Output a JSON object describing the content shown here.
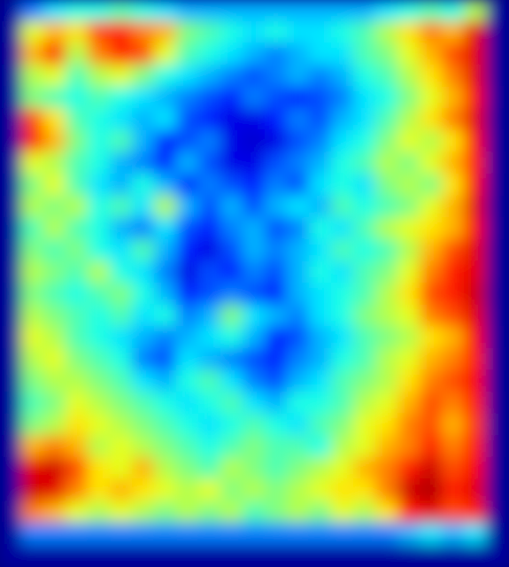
{
  "chart_data": {
    "type": "heatmap",
    "tick_labels": false,
    "color_range": [
      0,
      100
    ],
    "cells": [
      [
        3,
        25,
        35,
        40,
        40,
        45,
        40,
        35,
        30,
        30,
        30,
        30,
        30,
        30,
        30,
        30,
        30,
        35,
        40,
        45,
        40,
        55,
        3
      ],
      [
        3,
        60,
        70,
        65,
        80,
        85,
        75,
        70,
        50,
        45,
        40,
        35,
        40,
        35,
        35,
        40,
        45,
        55,
        65,
        75,
        70,
        90,
        3
      ],
      [
        3,
        70,
        85,
        55,
        75,
        85,
        80,
        60,
        45,
        40,
        35,
        30,
        25,
        30,
        35,
        35,
        45,
        50,
        60,
        70,
        80,
        90,
        3
      ],
      [
        3,
        55,
        60,
        45,
        55,
        60,
        50,
        40,
        35,
        30,
        25,
        20,
        25,
        30,
        25,
        30,
        40,
        45,
        55,
        65,
        75,
        90,
        3
      ],
      [
        3,
        50,
        45,
        40,
        45,
        40,
        35,
        30,
        25,
        20,
        15,
        25,
        20,
        15,
        20,
        25,
        35,
        40,
        50,
        60,
        70,
        88,
        3
      ],
      [
        3,
        80,
        65,
        45,
        40,
        35,
        30,
        35,
        20,
        15,
        10,
        10,
        15,
        25,
        20,
        30,
        35,
        45,
        55,
        65,
        75,
        90,
        3
      ],
      [
        3,
        85,
        70,
        50,
        40,
        45,
        30,
        15,
        20,
        25,
        10,
        8,
        10,
        20,
        25,
        35,
        40,
        50,
        60,
        55,
        65,
        88,
        3
      ],
      [
        3,
        60,
        55,
        45,
        40,
        30,
        25,
        15,
        30,
        20,
        10,
        10,
        20,
        25,
        30,
        40,
        45,
        55,
        50,
        60,
        70,
        85,
        3
      ],
      [
        3,
        50,
        60,
        45,
        35,
        30,
        40,
        30,
        15,
        25,
        20,
        15,
        25,
        20,
        35,
        40,
        35,
        50,
        55,
        50,
        65,
        88,
        3
      ],
      [
        3,
        55,
        50,
        55,
        40,
        45,
        35,
        55,
        30,
        20,
        30,
        20,
        30,
        35,
        30,
        45,
        40,
        45,
        50,
        60,
        70,
        90,
        3
      ],
      [
        3,
        45,
        55,
        45,
        40,
        30,
        25,
        35,
        20,
        15,
        25,
        30,
        20,
        25,
        40,
        35,
        45,
        55,
        60,
        65,
        70,
        88,
        3
      ],
      [
        3,
        50,
        45,
        50,
        40,
        35,
        45,
        30,
        15,
        10,
        20,
        30,
        25,
        30,
        35,
        45,
        40,
        45,
        55,
        70,
        80,
        90,
        3
      ],
      [
        3,
        55,
        50,
        45,
        55,
        40,
        35,
        25,
        10,
        20,
        15,
        25,
        20,
        30,
        40,
        35,
        45,
        50,
        60,
        75,
        85,
        90,
        3
      ],
      [
        3,
        50,
        45,
        40,
        45,
        50,
        40,
        30,
        15,
        20,
        25,
        20,
        15,
        30,
        35,
        40,
        45,
        55,
        65,
        80,
        85,
        92,
        3
      ],
      [
        3,
        55,
        50,
        45,
        40,
        45,
        35,
        40,
        25,
        30,
        50,
        35,
        30,
        25,
        35,
        40,
        50,
        55,
        60,
        75,
        80,
        90,
        3
      ],
      [
        3,
        60,
        55,
        45,
        40,
        35,
        30,
        25,
        30,
        35,
        40,
        30,
        15,
        20,
        30,
        35,
        45,
        50,
        55,
        65,
        70,
        88,
        3
      ],
      [
        3,
        55,
        60,
        50,
        45,
        40,
        25,
        20,
        35,
        30,
        25,
        20,
        15,
        25,
        30,
        40,
        45,
        55,
        60,
        70,
        75,
        85,
        3
      ],
      [
        3,
        50,
        55,
        55,
        50,
        45,
        35,
        30,
        40,
        45,
        35,
        25,
        20,
        30,
        35,
        45,
        50,
        55,
        65,
        75,
        80,
        88,
        3
      ],
      [
        3,
        45,
        50,
        60,
        55,
        50,
        45,
        40,
        35,
        40,
        45,
        35,
        30,
        40,
        40,
        45,
        55,
        60,
        70,
        80,
        75,
        85,
        3
      ],
      [
        3,
        50,
        55,
        65,
        60,
        55,
        50,
        45,
        40,
        35,
        40,
        45,
        40,
        35,
        45,
        50,
        60,
        65,
        75,
        80,
        70,
        82,
        3
      ],
      [
        3,
        70,
        75,
        70,
        55,
        60,
        55,
        50,
        45,
        40,
        45,
        50,
        45,
        45,
        40,
        55,
        60,
        70,
        75,
        85,
        75,
        85,
        3
      ],
      [
        3,
        90,
        92,
        80,
        65,
        60,
        70,
        55,
        50,
        45,
        55,
        50,
        45,
        50,
        55,
        60,
        70,
        75,
        85,
        92,
        80,
        88,
        3
      ],
      [
        3,
        92,
        90,
        75,
        65,
        70,
        65,
        60,
        55,
        60,
        50,
        55,
        50,
        55,
        60,
        65,
        65,
        75,
        92,
        95,
        85,
        90,
        3
      ],
      [
        3,
        75,
        70,
        60,
        55,
        60,
        55,
        50,
        55,
        50,
        55,
        45,
        50,
        55,
        50,
        60,
        55,
        65,
        85,
        90,
        80,
        85,
        3
      ],
      [
        3,
        25,
        25,
        25,
        25,
        25,
        25,
        25,
        25,
        25,
        25,
        25,
        25,
        25,
        25,
        25,
        25,
        25,
        30,
        35,
        30,
        35,
        3
      ],
      [
        3,
        3,
        3,
        3,
        3,
        3,
        3,
        3,
        3,
        3,
        3,
        3,
        3,
        3,
        3,
        3,
        3,
        3,
        3,
        3,
        3,
        3,
        3
      ]
    ]
  }
}
